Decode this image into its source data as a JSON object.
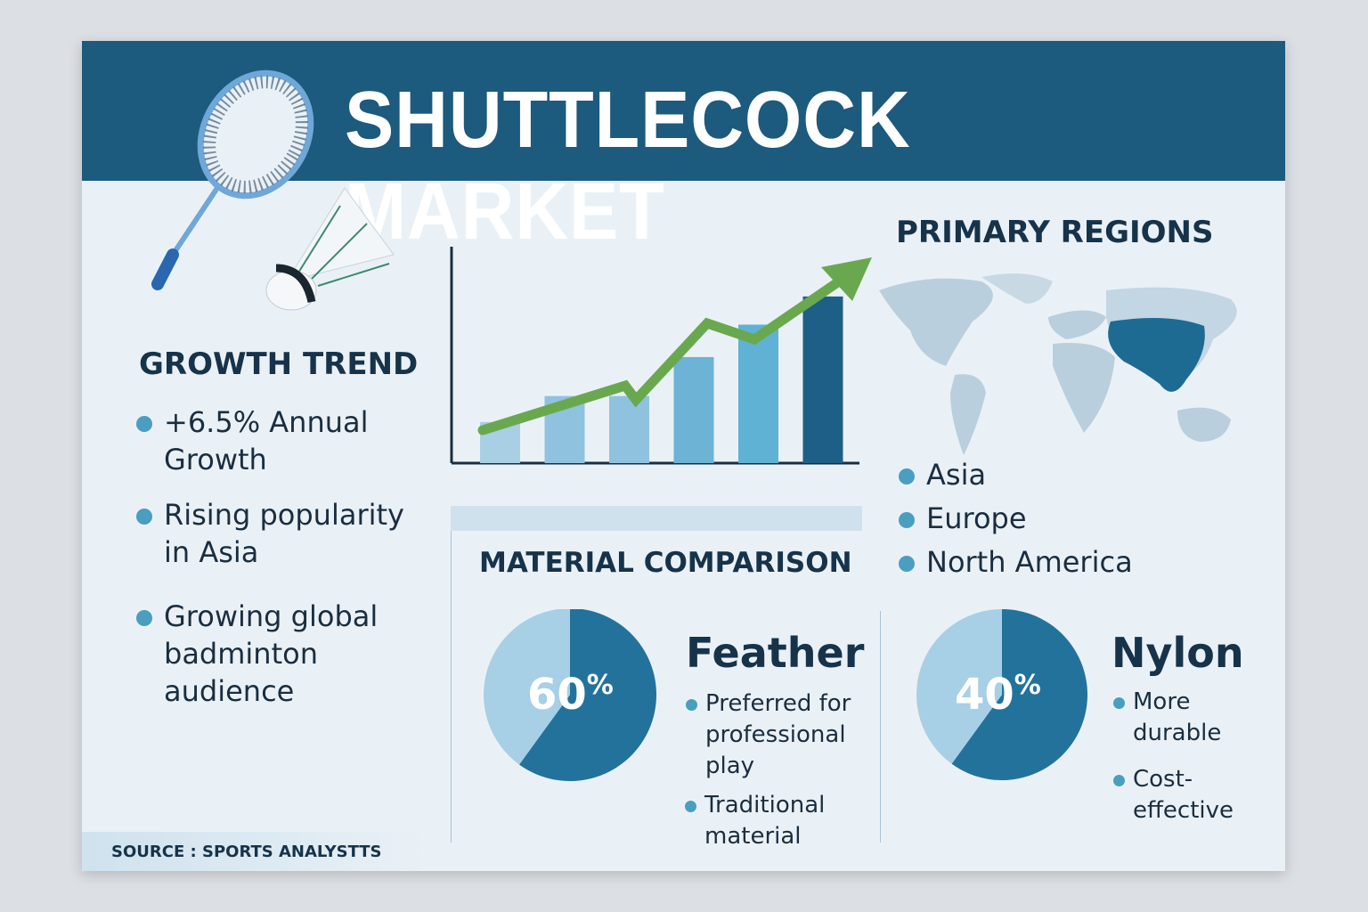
{
  "title": "SHUTTLECOCK MARKET",
  "growth": {
    "heading": "GROWTH TREND",
    "items": [
      "+6.5% Annual Growth",
      "Rising popularity in Asia",
      "Growing global badminton audience"
    ]
  },
  "regions": {
    "heading": "PRIMARY REGIONS",
    "items": [
      "Asia",
      "Europe",
      "North America"
    ],
    "highlight_color": "#1d6b93"
  },
  "materials": {
    "heading": "MATERIAL COMPARISON",
    "feather": {
      "name": "Feather",
      "pct": "60",
      "pct_sign": "%",
      "items": [
        "Preferred for professional play",
        "Traditional material"
      ]
    },
    "nylon": {
      "name": "Nylon",
      "pct": "40",
      "pct_sign": "%",
      "items": [
        "More durable",
        "Cost-effective"
      ]
    }
  },
  "source": "SOURCE : SPORTS ANALYSTTS",
  "colors": {
    "header": "#1c5a7e",
    "accent": "#4a9ebf",
    "trend": "#6aa84f"
  },
  "chart_data": [
    {
      "type": "bar",
      "categories": [
        "",
        "",
        "",
        "",
        "",
        ""
      ],
      "values": [
        19,
        31,
        31,
        49,
        64,
        77
      ],
      "trend_line": "upward arrow",
      "ylim": [
        0,
        100
      ],
      "grid": false
    },
    {
      "type": "pie",
      "name": "Feather",
      "values": [
        60,
        40
      ]
    },
    {
      "type": "pie",
      "name": "Nylon",
      "values": [
        40,
        60
      ]
    }
  ]
}
